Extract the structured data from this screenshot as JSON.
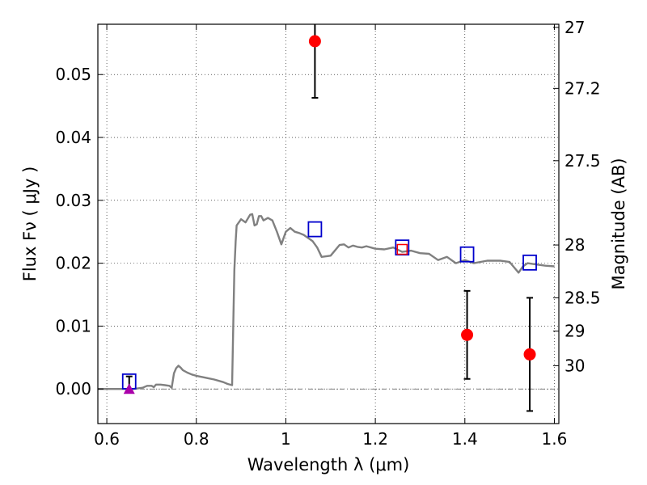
{
  "chart_data": {
    "type": "scatter",
    "xlabel": "Wavelength  λ (μm)",
    "ylabel": "Flux  Fν  ( μJy )",
    "y2label": "Magnitude (AB)",
    "xlim": [
      0.58,
      1.61
    ],
    "ylim": [
      -0.0055,
      0.058
    ],
    "grid": true,
    "x_ticks": [
      0.6,
      0.8,
      1.0,
      1.2,
      1.4,
      1.6
    ],
    "x_tick_labels": [
      "0.6",
      "0.8",
      "1",
      "1.2",
      "1.4",
      "1.6"
    ],
    "y_ticks": [
      0.0,
      0.01,
      0.02,
      0.03,
      0.04,
      0.05
    ],
    "y_tick_labels": [
      "0.00",
      "0.01",
      "0.02",
      "0.03",
      "0.04",
      "0.05"
    ],
    "magnitude_ticks": [
      {
        "label": "27",
        "flux": 0.0575
      },
      {
        "label": "27.2",
        "flux": 0.0478
      },
      {
        "label": "27.5",
        "flux": 0.0363
      },
      {
        "label": "28",
        "flux": 0.0229
      },
      {
        "label": "28.5",
        "flux": 0.0145
      },
      {
        "label": "29",
        "flux": 0.0092
      },
      {
        "label": "30",
        "flux": 0.0037
      }
    ],
    "colors": {
      "template": "#808080",
      "observed": "#ff0000",
      "model": "#0000cc",
      "upper_limit": "#aa00aa",
      "errorbar": "#000000"
    },
    "series": [
      {
        "style": "template-line",
        "x": [
          0.58,
          0.6,
          0.62,
          0.64,
          0.66,
          0.68,
          0.69,
          0.7,
          0.705,
          0.71,
          0.72,
          0.73,
          0.74,
          0.745,
          0.75,
          0.755,
          0.76,
          0.765,
          0.77,
          0.78,
          0.79,
          0.8,
          0.82,
          0.84,
          0.86,
          0.87,
          0.88,
          0.883,
          0.885,
          0.888,
          0.89,
          0.9,
          0.91,
          0.92,
          0.925,
          0.93,
          0.935,
          0.94,
          0.945,
          0.95,
          0.96,
          0.965,
          0.97,
          0.98,
          0.99,
          1.0,
          1.01,
          1.02,
          1.03,
          1.04,
          1.05,
          1.06,
          1.07,
          1.08,
          1.1,
          1.12,
          1.13,
          1.14,
          1.15,
          1.16,
          1.17,
          1.18,
          1.2,
          1.22,
          1.24,
          1.26,
          1.28,
          1.3,
          1.32,
          1.34,
          1.36,
          1.38,
          1.4,
          1.42,
          1.45,
          1.48,
          1.5,
          1.52,
          1.53,
          1.54,
          1.56,
          1.58,
          1.6
        ],
        "y": [
          0.0,
          0.0,
          0.0,
          0.0,
          0.0,
          0.0002,
          0.0005,
          0.0005,
          0.0003,
          0.0007,
          0.0007,
          0.0006,
          0.0005,
          0.0002,
          0.0025,
          0.0033,
          0.0037,
          0.0034,
          0.003,
          0.0026,
          0.0023,
          0.0021,
          0.0018,
          0.0015,
          0.0011,
          0.0008,
          0.0006,
          0.012,
          0.019,
          0.0235,
          0.026,
          0.027,
          0.0265,
          0.0277,
          0.0278,
          0.026,
          0.0262,
          0.0275,
          0.0275,
          0.0268,
          0.0272,
          0.027,
          0.0268,
          0.025,
          0.023,
          0.025,
          0.0256,
          0.025,
          0.0248,
          0.0245,
          0.024,
          0.0235,
          0.0225,
          0.021,
          0.0212,
          0.0229,
          0.023,
          0.0225,
          0.0228,
          0.0226,
          0.0225,
          0.0227,
          0.0223,
          0.0222,
          0.0225,
          0.0218,
          0.022,
          0.0216,
          0.0215,
          0.0205,
          0.021,
          0.02,
          0.0205,
          0.02,
          0.0204,
          0.0204,
          0.0202,
          0.0185,
          0.0195,
          0.02,
          0.0198,
          0.0196,
          0.0195
        ]
      },
      {
        "style": "model-squares",
        "x": [
          0.65,
          1.065,
          1.26,
          1.405,
          1.545
        ],
        "y": [
          0.0012,
          0.0254,
          0.0225,
          0.0214,
          0.0201
        ]
      },
      {
        "style": "observed-points",
        "x": [
          1.065,
          1.405,
          1.545
        ],
        "y": [
          0.0553,
          0.0086,
          0.0055
        ],
        "yerr": [
          0.009,
          0.007,
          0.009
        ]
      },
      {
        "style": "nondetection",
        "x": [
          0.65
        ],
        "y": [
          0.0
        ],
        "yerr_up": [
          0.002
        ]
      },
      {
        "style": "observed-open-square",
        "x": [
          1.26
        ],
        "y": [
          0.0222
        ]
      }
    ]
  }
}
